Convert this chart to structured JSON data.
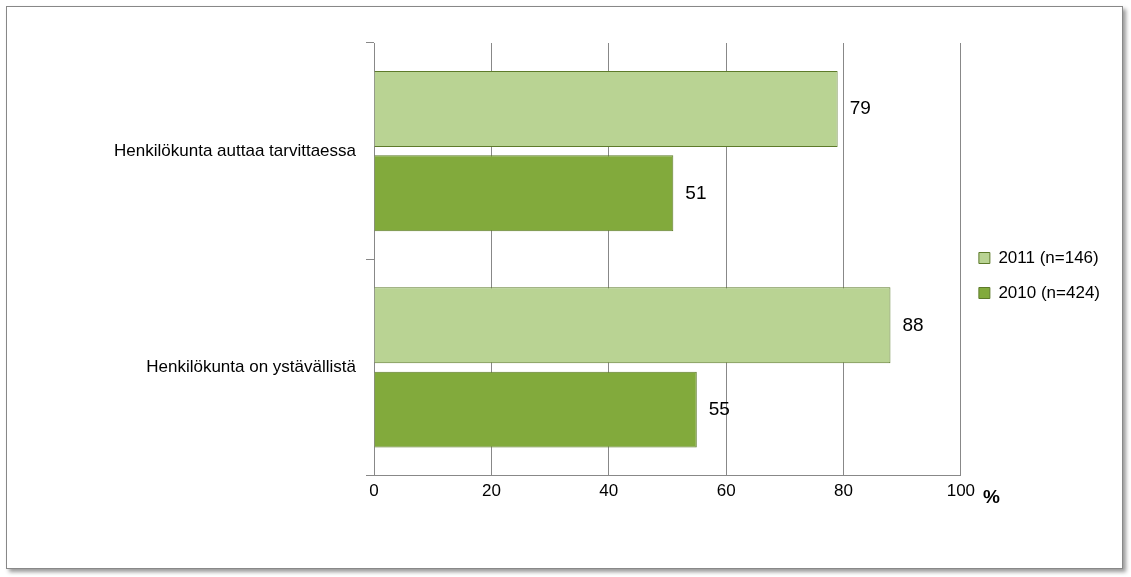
{
  "chart_data": {
    "type": "bar",
    "orientation": "horizontal",
    "xlabel": "%",
    "categories": [
      "Henkilökunta auttaa tarvittaessa",
      "Henkilökunta on ystävällistä"
    ],
    "series": [
      {
        "name": "2011 (n=146)",
        "color": "#b9d393",
        "values": [
          79,
          88
        ]
      },
      {
        "name": "2010 (n=424)",
        "color": "#82aa3c",
        "values": [
          51,
          55
        ]
      }
    ],
    "xlim": [
      0,
      100
    ],
    "xticks": [
      0,
      20,
      40,
      60,
      80,
      100
    ],
    "grid": "x",
    "legend": "right",
    "data_labels": true
  }
}
